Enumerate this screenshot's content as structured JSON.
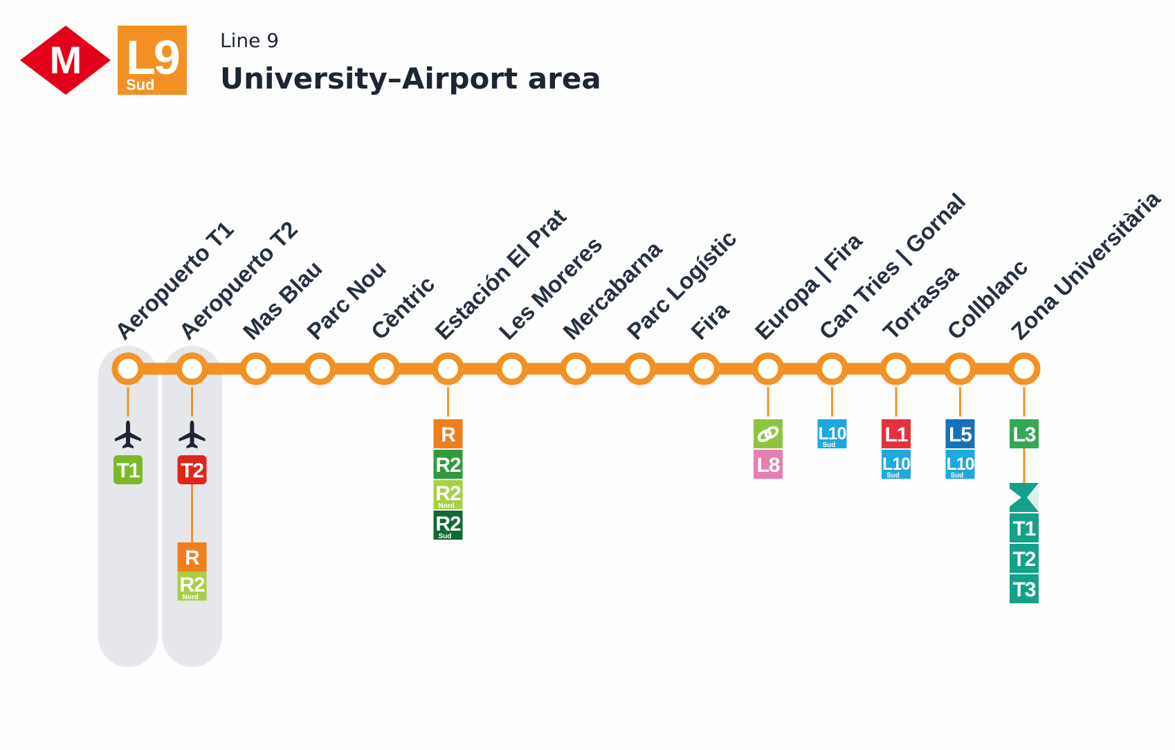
{
  "header": {
    "metro_logo_letter": "M",
    "line_code": "L9",
    "line_branch": "Sud",
    "line_label": "Line 9",
    "title": "University–Airport area"
  },
  "colors": {
    "metro_red": "#e2001a",
    "line_orange": "#f39125",
    "station_fill": "#ffffff",
    "airport_band": "#e5e7eb",
    "text_dark": "#263040"
  },
  "stations": [
    {
      "name": "Aeropuerto T1",
      "airport": true,
      "connections": [
        {
          "type": "icon",
          "icon": "airplane-icon"
        },
        {
          "gap": 8,
          "label": "T1",
          "color": "#7bb928",
          "rounded": true
        }
      ]
    },
    {
      "name": "Aeropuerto T2",
      "airport": true,
      "connections": [
        {
          "type": "icon",
          "icon": "airplane-icon"
        },
        {
          "gap": 8,
          "label": "T2",
          "color": "#e0261b",
          "rounded": true
        },
        {
          "gap": 84,
          "label": "R",
          "color": "#f07e1c"
        },
        {
          "gap": 0,
          "label": "R2",
          "sub": "Nord",
          "color": "#a8cf45"
        }
      ]
    },
    {
      "name": "Mas Blau",
      "connections": []
    },
    {
      "name": "Parc Nou",
      "connections": []
    },
    {
      "name": "Cèntric",
      "connections": []
    },
    {
      "name": "Estación El Prat",
      "connections": [
        {
          "gap": 42,
          "label": "R",
          "color": "#f07e1c"
        },
        {
          "gap": 2,
          "label": "R2",
          "color": "#2e9b3d"
        },
        {
          "gap": 2,
          "label": "R2",
          "sub": "Nord",
          "color": "#a8cf45"
        },
        {
          "gap": 2,
          "label": "R2",
          "sub": "Sud",
          "color": "#0f6a31"
        }
      ]
    },
    {
      "name": "Les Moreres",
      "connections": []
    },
    {
      "name": "Mercabarna",
      "connections": []
    },
    {
      "name": "Parc Logístic",
      "connections": []
    },
    {
      "name": "Fira",
      "connections": []
    },
    {
      "name": "Europa | Fira",
      "connections": [
        {
          "type": "icon",
          "icon": "fgc-logo-icon",
          "gap": 42,
          "color": "#8cc63f"
        },
        {
          "gap": 2,
          "label": "L8",
          "color": "#e57fb2"
        }
      ]
    },
    {
      "name": "Can Tries | Gornal",
      "connections": [
        {
          "gap": 42,
          "label": "L10",
          "sub": "Sud",
          "color": "#1ea8e0"
        }
      ]
    },
    {
      "name": "Torrassa",
      "connections": [
        {
          "gap": 42,
          "label": "L1",
          "color": "#e2333d"
        },
        {
          "gap": 2,
          "label": "L10",
          "sub": "Sud",
          "color": "#1ea8e0"
        }
      ]
    },
    {
      "name": "Collblanc",
      "connections": [
        {
          "gap": 42,
          "label": "L5",
          "color": "#1572b8"
        },
        {
          "gap": 2,
          "label": "L10",
          "sub": "Sud",
          "color": "#1ea8e0"
        }
      ]
    },
    {
      "name": "Zona Universitària",
      "connections": [
        {
          "gap": 42,
          "label": "L3",
          "color": "#34a853"
        },
        {
          "type": "icon",
          "icon": "tram-logo-icon",
          "gap": 50,
          "color": "#14a08a"
        },
        {
          "gap": 2,
          "label": "T1",
          "color": "#14a08a"
        },
        {
          "gap": 2,
          "label": "T2",
          "color": "#14a08a"
        },
        {
          "gap": 2,
          "label": "T3",
          "color": "#14a08a"
        }
      ]
    }
  ]
}
